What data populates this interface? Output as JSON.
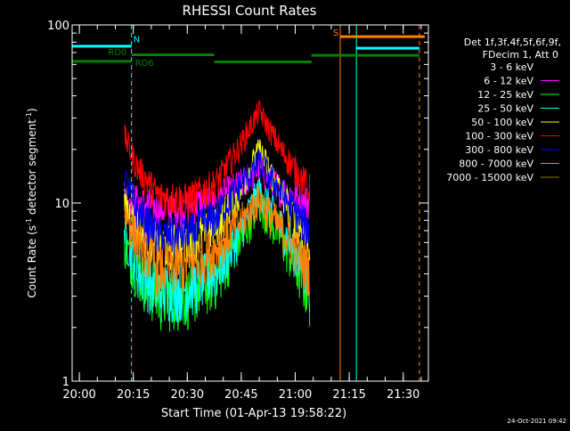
{
  "chart_data": {
    "type": "line",
    "title": "RHESSI Count Rates",
    "xlabel": "Start Time (01-Apr-13 19:58:22)",
    "ylabel": "Count Rate (s",
    "ylabel_sup1": "-1",
    "ylabel_mid": " detector segment",
    "ylabel_sup2": "-1",
    "ylabel_end": ")",
    "y_scale": "log",
    "ylim": [
      1,
      100
    ],
    "y_ticks": [
      {
        "value": 1,
        "label": "1"
      },
      {
        "value": 10,
        "label": "10"
      },
      {
        "value": 100,
        "label": "100"
      }
    ],
    "x_axis_start_min": -2,
    "x_axis_end_min": 97,
    "x_ticks": [
      {
        "label": "20:00",
        "minutes": 0
      },
      {
        "label": "20:15",
        "minutes": 15
      },
      {
        "label": "20:30",
        "minutes": 30
      },
      {
        "label": "20:45",
        "minutes": 45
      },
      {
        "label": "21:00",
        "minutes": 60
      },
      {
        "label": "21:15",
        "minutes": 75
      },
      {
        "label": "21:30",
        "minutes": 90
      }
    ],
    "legend": {
      "placement": "right",
      "header1": "Det 1f,3f,4f,5f,6f,9f,",
      "header2": "FDecim 1, Att 0"
    },
    "series": [
      {
        "name": "3 - 6 keV",
        "color": "#000000",
        "values": [
          6.5,
          4.6,
          3.6,
          3.7,
          4.5,
          6.8,
          10.5,
          7.5,
          4.6
        ]
      },
      {
        "name": "6 - 12 keV",
        "color": "#ff00ff",
        "values": [
          11.5,
          10.3,
          9.3,
          9.6,
          10.6,
          12.5,
          15.5,
          12,
          10
        ]
      },
      {
        "name": "12 - 25 keV",
        "color": "#00ff00",
        "values": [
          6,
          4.2,
          3,
          3.1,
          3.8,
          6,
          10,
          6.5,
          3.2
        ]
      },
      {
        "name": "25 - 50 keV",
        "color": "#00ffff",
        "values": [
          7,
          4.3,
          3.3,
          3.4,
          4.2,
          6.5,
          12,
          7.5,
          3.8
        ]
      },
      {
        "name": "50 - 100 keV",
        "color": "#ffff00",
        "values": [
          10,
          7.5,
          5.8,
          6,
          7.5,
          11,
          20,
          11.5,
          6
        ]
      },
      {
        "name": "100 - 300 keV",
        "color": "#ff0000",
        "values": [
          24,
          16,
          11,
          10.5,
          13,
          20,
          33,
          20,
          12
        ]
      },
      {
        "name": "300 - 800 keV",
        "color": "#0000ff",
        "values": [
          14,
          9,
          6.5,
          6.6,
          8.5,
          12,
          17,
          11.5,
          7
        ]
      },
      {
        "name": "800 - 7000 keV",
        "color": "#ff8000",
        "values": [
          9,
          6.2,
          4.3,
          4.5,
          5.6,
          7.5,
          10.5,
          7.2,
          4.3
        ]
      },
      {
        "name": "7000 - 15000 keV",
        "color": "#808000",
        "values": [],
        "marker": "line"
      }
    ],
    "series_x_minutes": [
      12.5,
      16,
      22,
      30,
      38,
      44,
      50,
      56,
      64
    ],
    "vertical_lines": [
      {
        "minutes": -2,
        "color": "#00ffff",
        "style": "solid"
      },
      {
        "minutes": 14.5,
        "color": "#00ffff",
        "style": "dashed"
      },
      {
        "minutes": 72.5,
        "color": "#ff8000",
        "style": "solid"
      },
      {
        "minutes": 77,
        "color": "#00ffff",
        "style": "solid"
      },
      {
        "minutes": 94.5,
        "color": "#ff8000",
        "style": "dashed"
      }
    ],
    "annotations": [
      {
        "text": "N",
        "color": "#00ffff",
        "minutes": 15,
        "value": 80
      },
      {
        "text": "S",
        "color": "#ff8000",
        "minutes": 70.5,
        "value": 87
      },
      {
        "text": "RD0",
        "color": "#008000",
        "minutes": 8,
        "value": 67.5
      },
      {
        "text": "RD6",
        "color": "#008000",
        "minutes": 15.5,
        "value": 59
      }
    ],
    "status_bars": [
      {
        "color": "#00ffff",
        "segments": [
          [
            -2,
            14.5
          ],
          [
            77,
            94.5
          ]
        ],
        "values": [
          76,
          74
        ]
      },
      {
        "color": "#ff8000",
        "segments": [
          [
            72.5,
            96
          ]
        ],
        "values": [
          86
        ]
      },
      {
        "color": "#008000",
        "segments": [
          [
            -2,
            14.5
          ],
          [
            14.5,
            37.5
          ],
          [
            37.5,
            64.5
          ],
          [
            64.5,
            94.5
          ]
        ],
        "values": [
          62.5,
          68,
          62,
          67.5
        ]
      }
    ],
    "footer_date": "24-Oct-2021 09:42"
  }
}
